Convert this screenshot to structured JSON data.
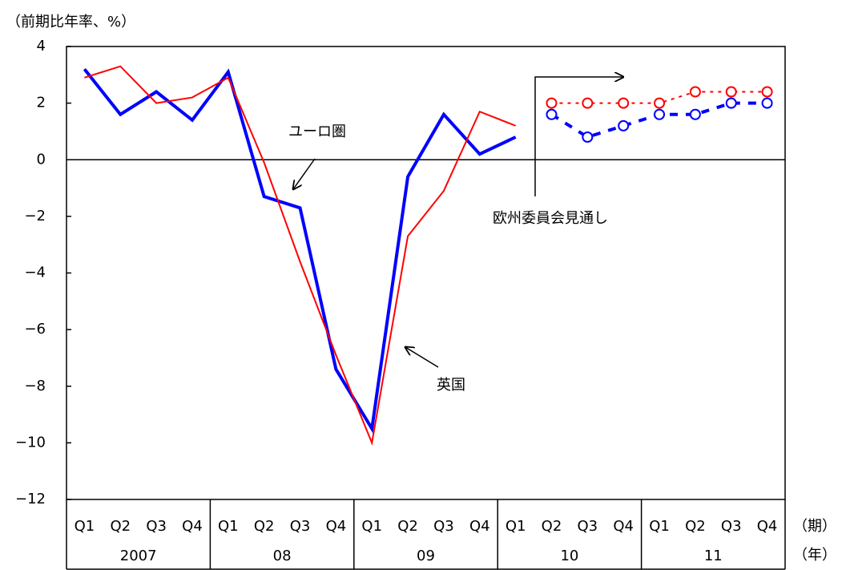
{
  "chart_data": {
    "type": "line",
    "y_axis_label": "（前期比年率、%）",
    "x_axis_label": "（期）",
    "year_axis_label": "（年）",
    "categories": [
      "Q1",
      "Q2",
      "Q3",
      "Q4",
      "Q1",
      "Q2",
      "Q3",
      "Q4",
      "Q1",
      "Q2",
      "Q3",
      "Q4",
      "Q1",
      "Q2",
      "Q3",
      "Q4",
      "Q1",
      "Q2",
      "Q3",
      "Q4"
    ],
    "years": [
      "2007",
      "08",
      "09",
      "10",
      "11"
    ],
    "ylim": [
      -12,
      4
    ],
    "yticks": [
      {
        "value": -12,
        "label": "−12"
      },
      {
        "value": -10,
        "label": "−10"
      },
      {
        "value": -8,
        "label": "−8"
      },
      {
        "value": -6,
        "label": "−6"
      },
      {
        "value": -4,
        "label": "−4"
      },
      {
        "value": -2,
        "label": "−2"
      },
      0,
      2,
      4
    ],
    "series": [
      {
        "name": "ユーロ圏",
        "color": "#0000ff",
        "style": "solid",
        "width": 4,
        "values": [
          3.2,
          1.6,
          2.4,
          1.4,
          3.1,
          -1.3,
          -1.7,
          -7.4,
          -9.5,
          -0.6,
          1.6,
          0.2,
          0.8,
          null,
          null,
          null,
          null,
          null,
          null,
          null
        ]
      },
      {
        "name": "英国",
        "color": "#ff0000",
        "style": "solid",
        "width": 2,
        "values": [
          2.9,
          3.3,
          2.0,
          2.2,
          2.9,
          -0.1,
          -3.6,
          -6.9,
          -10.0,
          -2.7,
          -1.1,
          1.7,
          1.2,
          null,
          null,
          null,
          null,
          null,
          null,
          null
        ]
      },
      {
        "color": "#ff0000",
        "style": "dotted",
        "width": 2,
        "values": [
          null,
          null,
          null,
          null,
          null,
          null,
          null,
          null,
          null,
          null,
          null,
          null,
          null,
          2.0,
          2.0,
          2.0,
          2.0,
          2.4,
          2.4,
          2.4
        ]
      },
      {
        "color": "#0000ff",
        "style": "dashed",
        "width": 4,
        "values": [
          null,
          null,
          null,
          null,
          null,
          null,
          null,
          null,
          null,
          null,
          null,
          null,
          null,
          1.6,
          0.8,
          1.2,
          1.6,
          1.6,
          2.0,
          2.0
        ]
      }
    ],
    "forecast_annotation": "欧州委員会見通し"
  }
}
